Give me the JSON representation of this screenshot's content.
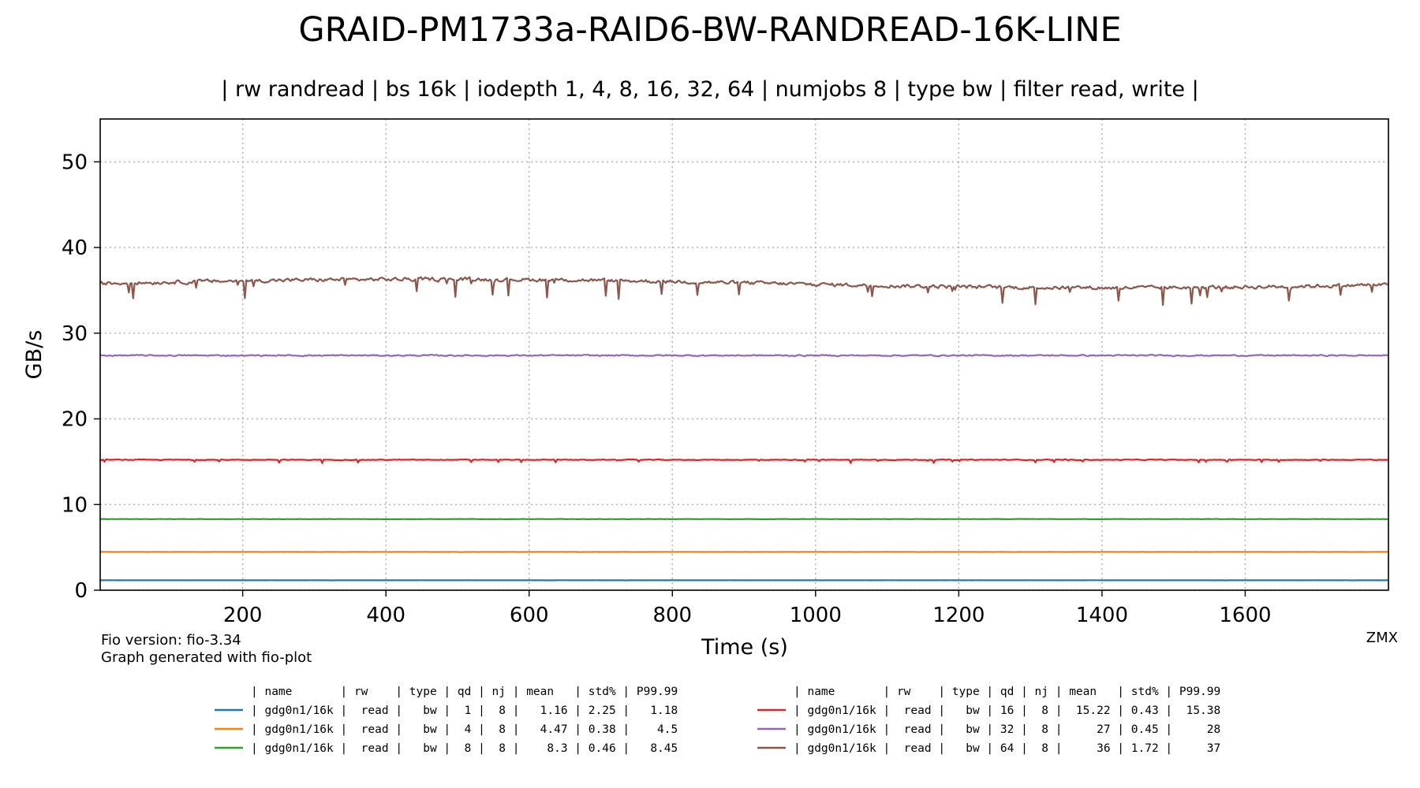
{
  "chart_data": {
    "type": "line",
    "title": "GRAID-PM1733a-RAID6-BW-RANDREAD-16K-LINE",
    "subtitle": "| rw randread | bs 16k | iodepth 1, 4, 8, 16, 32, 64 | numjobs 8 | type bw | filter read, write |",
    "xlabel": "Time (s)",
    "ylabel": "GB/s",
    "xlim": [
      1,
      1800
    ],
    "ylim": [
      0,
      55
    ],
    "xticks": [
      200,
      400,
      600,
      800,
      1000,
      1200,
      1400,
      1600
    ],
    "yticks": [
      0,
      10,
      20,
      30,
      40,
      50
    ],
    "grid": true,
    "legend_position": "bottom",
    "legend_header": "| name       | rw    | type | qd | nj | mean   | std% | P99.99",
    "series": [
      {
        "name": "gdg0n1/16k",
        "rw": "read",
        "type": "bw",
        "qd": 1,
        "nj": 8,
        "mean": 1.16,
        "std": 2.25,
        "p9999": 1.18,
        "noise": 0.01,
        "dips": 0,
        "color": "#1f77b4",
        "legend_text": "| gdg0n1/16k |  read |   bw |  1 |  8 |   1.16 | 2.25 |   1.18"
      },
      {
        "name": "gdg0n1/16k",
        "rw": "read",
        "type": "bw",
        "qd": 4,
        "nj": 8,
        "mean": 4.47,
        "std": 0.38,
        "p9999": 4.5,
        "noise": 0.02,
        "dips": 0,
        "color": "#ff7f0e",
        "legend_text": "| gdg0n1/16k |  read |   bw |  4 |  8 |   4.47 | 0.38 |    4.5"
      },
      {
        "name": "gdg0n1/16k",
        "rw": "read",
        "type": "bw",
        "qd": 8,
        "nj": 8,
        "mean": 8.3,
        "std": 0.46,
        "p9999": 8.45,
        "noise": 0.03,
        "dips": 0,
        "color": "#2ca02c",
        "legend_text": "| gdg0n1/16k |  read |   bw |  8 |  8 |    8.3 | 0.46 |   8.45"
      },
      {
        "name": "gdg0n1/16k",
        "rw": "read",
        "type": "bw",
        "qd": 16,
        "nj": 8,
        "mean": 15.22,
        "std": 0.43,
        "p9999": 15.38,
        "noise": 0.06,
        "dips": 0.4,
        "color": "#d62728",
        "legend_text": "| gdg0n1/16k |  read |   bw | 16 |  8 |  15.22 | 0.43 |  15.38"
      },
      {
        "name": "gdg0n1/16k",
        "rw": "read",
        "type": "bw",
        "qd": 32,
        "nj": 8,
        "mean": 27.4,
        "std": 0.45,
        "p9999": 28,
        "noise": 0.12,
        "dips": 0,
        "color": "#9467bd",
        "legend_text": "| gdg0n1/16k |  read |   bw | 32 |  8 |     27 | 0.45 |     28"
      },
      {
        "name": "gdg0n1/16k",
        "rw": "read",
        "type": "bw",
        "qd": 64,
        "nj": 8,
        "mean": 35.8,
        "std": 1.72,
        "p9999": 37,
        "noise": 0.35,
        "dips": 2.2,
        "color": "#8c564b",
        "legend_text": "| gdg0n1/16k |  read |   bw | 64 |  8 |     36 | 1.72 |     37"
      }
    ]
  },
  "footer": {
    "fio_version": "Fio version: fio-3.34",
    "generator": "Graph generated with fio-plot",
    "author": "ZMX"
  }
}
